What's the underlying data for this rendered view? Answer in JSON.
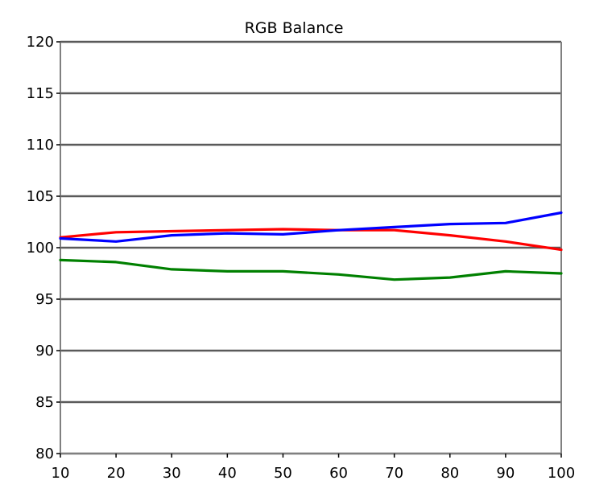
{
  "chart_data": {
    "type": "line",
    "title": "RGB Balance",
    "xlabel": "",
    "ylabel": "",
    "x": [
      10,
      20,
      30,
      40,
      50,
      60,
      70,
      80,
      90,
      100
    ],
    "xlim": [
      10,
      100
    ],
    "ylim": [
      80,
      120
    ],
    "xticks": [
      "10",
      "20",
      "30",
      "40",
      "50",
      "60",
      "70",
      "80",
      "90",
      "100"
    ],
    "yticks": [
      "80",
      "85",
      "90",
      "95",
      "100",
      "105",
      "110",
      "115",
      "120"
    ],
    "grid": "horizontal",
    "legend": "none",
    "series": [
      {
        "color": "#ff0000",
        "values": [
          101.0,
          101.5,
          101.6,
          101.7,
          101.8,
          101.7,
          101.7,
          101.2,
          100.6,
          99.8
        ]
      },
      {
        "color": "#0000ff",
        "values": [
          100.9,
          100.6,
          101.2,
          101.4,
          101.3,
          101.7,
          102.0,
          102.3,
          102.4,
          103.4
        ]
      },
      {
        "color": "#008000",
        "values": [
          98.8,
          98.6,
          97.9,
          97.7,
          97.7,
          97.4,
          96.9,
          97.1,
          97.7,
          97.5
        ]
      }
    ]
  }
}
